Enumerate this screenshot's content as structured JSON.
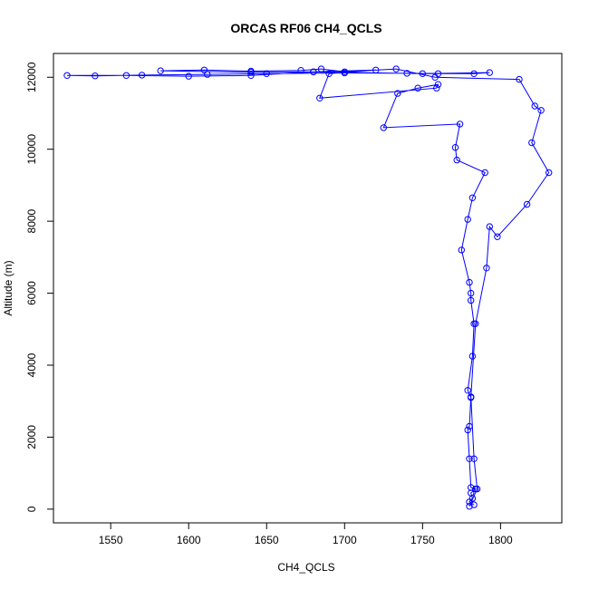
{
  "chart_data": {
    "type": "line",
    "title": "ORCAS RF06 CH4_QCLS",
    "xlabel": "CH4_QCLS",
    "ylabel": "Altitude (m)",
    "xlim": [
      1513.3,
      1839.3
    ],
    "ylim": [
      -381.0,
      12661.0
    ],
    "x_ticks": [
      1550,
      1600,
      1650,
      1700,
      1750,
      1800
    ],
    "y_ticks": [
      0,
      2000,
      4000,
      6000,
      8000,
      10000,
      12000
    ],
    "grid": false,
    "series": [
      {
        "color": "#0000ff",
        "marker": "open-circle",
        "points": [
          [
            1783,
            120
          ],
          [
            1780,
            200
          ],
          [
            1782,
            300
          ],
          [
            1781,
            450
          ],
          [
            1784,
            560
          ],
          [
            1781,
            600
          ],
          [
            1780,
            1400
          ],
          [
            1779,
            2200
          ],
          [
            1780,
            2300
          ],
          [
            1781,
            3100
          ],
          [
            1779,
            3300
          ],
          [
            1782,
            4250
          ],
          [
            1783,
            5150
          ],
          [
            1781,
            5800
          ],
          [
            1781,
            6000
          ],
          [
            1780,
            6300
          ],
          [
            1775,
            7200
          ],
          [
            1779,
            8050
          ],
          [
            1782,
            8650
          ],
          [
            1790,
            9350
          ],
          [
            1772,
            9700
          ],
          [
            1771,
            10050
          ],
          [
            1774,
            10700
          ],
          [
            1725,
            10600
          ],
          [
            1734,
            11550
          ],
          [
            1747,
            11700
          ],
          [
            1760,
            11800
          ],
          [
            1759,
            11700
          ],
          [
            1684,
            11420
          ],
          [
            1690,
            12100
          ],
          [
            1720,
            12200
          ],
          [
            1680,
            12150
          ],
          [
            1640,
            12050
          ],
          [
            1600,
            12030
          ],
          [
            1560,
            12050
          ],
          [
            1522,
            12050
          ],
          [
            1540,
            12040
          ],
          [
            1570,
            12060
          ],
          [
            1612,
            12080
          ],
          [
            1650,
            12100
          ],
          [
            1700,
            12120
          ],
          [
            1740,
            12110
          ],
          [
            1760,
            12100
          ],
          [
            1783,
            12100
          ],
          [
            1793,
            12130
          ],
          [
            1750,
            12100
          ],
          [
            1680,
            12150
          ],
          [
            1640,
            12140
          ],
          [
            1582,
            12180
          ],
          [
            1610,
            12200
          ],
          [
            1640,
            12170
          ],
          [
            1672,
            12190
          ],
          [
            1685,
            12230
          ],
          [
            1700,
            12150
          ],
          [
            1733,
            12230
          ],
          [
            1758,
            12000
          ],
          [
            1812,
            11940
          ],
          [
            1822,
            11200
          ],
          [
            1826,
            11080
          ],
          [
            1820,
            10180
          ],
          [
            1831,
            9350
          ],
          [
            1817,
            8470
          ],
          [
            1798,
            7570
          ],
          [
            1793,
            7850
          ],
          [
            1791,
            6700
          ],
          [
            1784,
            5150
          ],
          [
            1781,
            3120
          ],
          [
            1783,
            1400
          ],
          [
            1785,
            560
          ],
          [
            1780,
            80
          ]
        ]
      }
    ]
  }
}
